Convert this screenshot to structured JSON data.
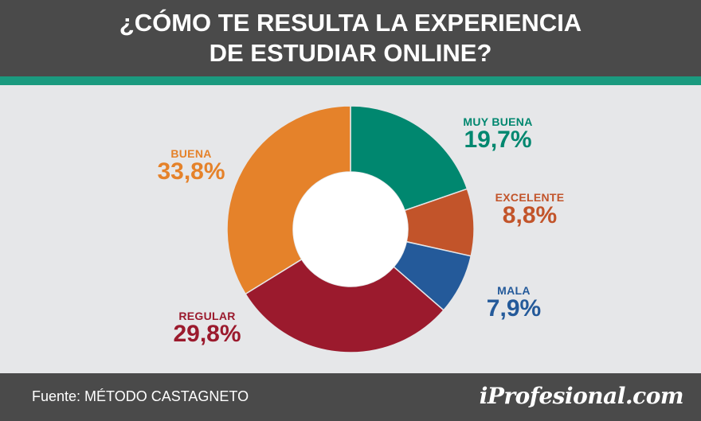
{
  "header": {
    "title_line1": "¿CÓMO TE RESULTA LA EXPERIENCIA",
    "title_line2": "DE ESTUDIAR ONLINE?"
  },
  "chart_data": {
    "type": "pie",
    "donut": true,
    "title": "¿CÓMO TE RESULTA LA EXPERIENCIA DE ESTUDIAR ONLINE?",
    "categories": [
      "MUY BUENA",
      "EXCELENTE",
      "MALA",
      "REGULAR",
      "BUENA"
    ],
    "values": [
      19.7,
      8.8,
      7.9,
      29.8,
      33.8
    ],
    "value_labels": [
      "19,7%",
      "8,8%",
      "7,9%",
      "29,8%",
      "33,8%"
    ],
    "colors": [
      "#00876f",
      "#c2542a",
      "#245a9a",
      "#9b1a2d",
      "#e5822a"
    ]
  },
  "footer": {
    "source": "Fuente: MÉTODO CASTAGNETO",
    "brand": "iProfesional.com"
  }
}
